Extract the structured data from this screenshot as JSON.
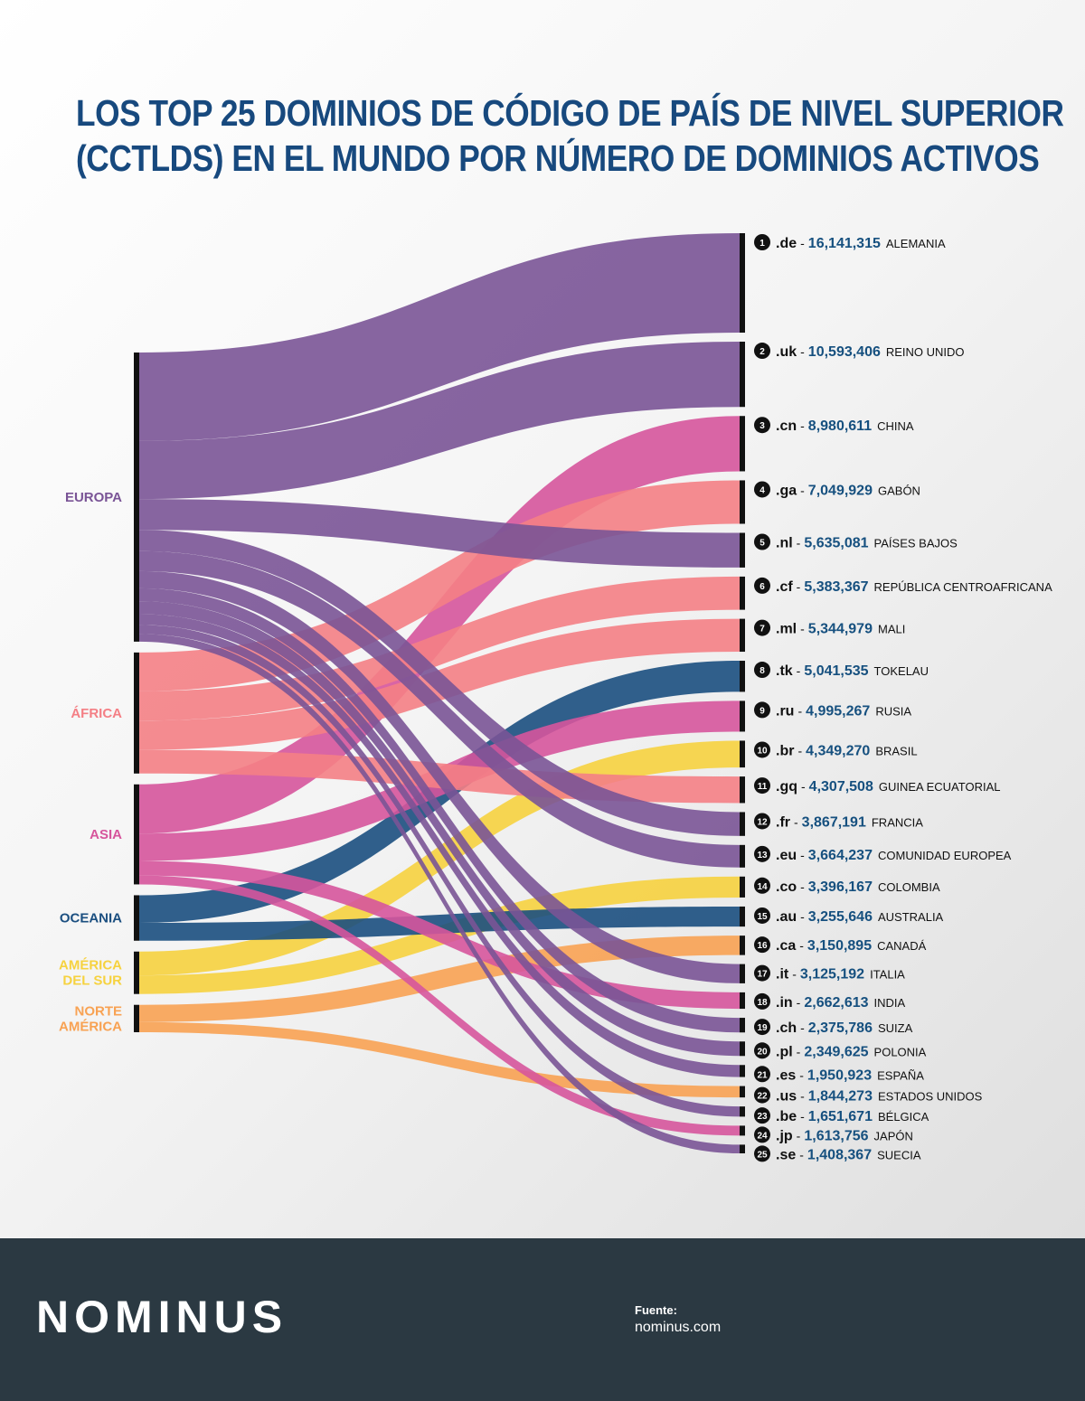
{
  "title": {
    "line1": "LOS TOP 25 DOMINIOS DE CÓDIGO DE PAÍS DE NIVEL SUPERIOR",
    "line2": "(CCTLDS) EN EL MUNDO POR NÚMERO DE DOMINIOS ACTIVOS"
  },
  "chart_data": {
    "type": "sankey",
    "regions": [
      {
        "id": "europa",
        "label": [
          "EUROPA"
        ],
        "color": "#7a5496"
      },
      {
        "id": "africa",
        "label": [
          "ÁFRICA"
        ],
        "color": "#f47f85"
      },
      {
        "id": "asia",
        "label": [
          "ASIA"
        ],
        "color": "#d6559c"
      },
      {
        "id": "oceania",
        "label": [
          "OCEANIA"
        ],
        "color": "#1b4f80"
      },
      {
        "id": "sudamerica",
        "label": [
          "AMÉRICA",
          "DEL SUR"
        ],
        "color": "#f6d23f"
      },
      {
        "id": "norteamerica",
        "label": [
          "NORTE",
          "AMÉRICA"
        ],
        "color": "#f8a253"
      }
    ],
    "domains": [
      {
        "rank": "1",
        "tld": ".de",
        "value": 16141315,
        "value_label": "16,141,315",
        "country": "ALEMANIA",
        "region": "europa"
      },
      {
        "rank": "2",
        "tld": ".uk",
        "value": 10593406,
        "value_label": "10,593,406",
        "country": "REINO UNIDO",
        "region": "europa"
      },
      {
        "rank": "3",
        "tld": ".cn",
        "value": 8980611,
        "value_label": "8,980,611",
        "country": "CHINA",
        "region": "asia"
      },
      {
        "rank": "4",
        "tld": ".ga",
        "value": 7049929,
        "value_label": "7,049,929",
        "country": "GABÓN",
        "region": "africa"
      },
      {
        "rank": "5",
        "tld": ".nl",
        "value": 5635081,
        "value_label": "5,635,081",
        "country": "PAÍSES BAJOS",
        "region": "europa"
      },
      {
        "rank": "6",
        "tld": ".cf",
        "value": 5383367,
        "value_label": "5,383,367",
        "country": "REPÚBLICA CENTROAFRICANA",
        "region": "africa"
      },
      {
        "rank": "7",
        "tld": ".ml",
        "value": 5344979,
        "value_label": "5,344,979",
        "country": "MALI",
        "region": "africa"
      },
      {
        "rank": "8",
        "tld": ".tk",
        "value": 5041535,
        "value_label": "5,041,535",
        "country": "TOKELAU",
        "region": "oceania"
      },
      {
        "rank": "9",
        "tld": ".ru",
        "value": 4995267,
        "value_label": "4,995,267",
        "country": "RUSIA",
        "region": "asia"
      },
      {
        "rank": "10",
        "tld": ".br",
        "value": 4349270,
        "value_label": "4,349,270",
        "country": "BRASIL",
        "region": "sudamerica"
      },
      {
        "rank": "11",
        "tld": ".gq",
        "value": 4307508,
        "value_label": "4,307,508",
        "country": "GUINEA ECUATORIAL",
        "region": "africa"
      },
      {
        "rank": "12",
        "tld": ".fr",
        "value": 3867191,
        "value_label": "3,867,191",
        "country": "FRANCIA",
        "region": "europa"
      },
      {
        "rank": "13",
        "tld": ".eu",
        "value": 3664237,
        "value_label": "3,664,237",
        "country": "COMUNIDAD EUROPEA",
        "region": "europa"
      },
      {
        "rank": "14",
        "tld": ".co",
        "value": 3396167,
        "value_label": "3,396,167",
        "country": "COLOMBIA",
        "region": "sudamerica"
      },
      {
        "rank": "15",
        "tld": ".au",
        "value": 3255646,
        "value_label": "3,255,646",
        "country": "AUSTRALIA",
        "region": "oceania"
      },
      {
        "rank": "16",
        "tld": ".ca",
        "value": 3150895,
        "value_label": "3,150,895",
        "country": "CANADÁ",
        "region": "norteamerica"
      },
      {
        "rank": "17",
        "tld": ".it",
        "value": 3125192,
        "value_label": "3,125,192",
        "country": "ITALIA",
        "region": "europa"
      },
      {
        "rank": "18",
        "tld": ".in",
        "value": 2662613,
        "value_label": "2,662,613",
        "country": "INDIA",
        "region": "asia"
      },
      {
        "rank": "19",
        "tld": ".ch",
        "value": 2375786,
        "value_label": "2,375,786",
        "country": "SUIZA",
        "region": "europa"
      },
      {
        "rank": "20",
        "tld": ".pl",
        "value": 2349625,
        "value_label": "2,349,625",
        "country": "POLONIA",
        "region": "europa"
      },
      {
        "rank": "21",
        "tld": ".es",
        "value": 1950923,
        "value_label": "1,950,923",
        "country": "ESPAÑA",
        "region": "europa"
      },
      {
        "rank": "22",
        "tld": ".us",
        "value": 1844273,
        "value_label": "1,844,273",
        "country": "ESTADOS UNIDOS",
        "region": "norteamerica"
      },
      {
        "rank": "23",
        "tld": ".be",
        "value": 1651671,
        "value_label": "1,651,671",
        "country": "BÉLGICA",
        "region": "europa"
      },
      {
        "rank": "24",
        "tld": ".jp",
        "value": 1613756,
        "value_label": "1,613,756",
        "country": "JAPÓN",
        "region": "asia"
      },
      {
        "rank": "25",
        "tld": ".se",
        "value": 1408367,
        "value_label": "1,408,367",
        "country": "SUECIA",
        "region": "europa"
      }
    ]
  },
  "footer": {
    "logo": "NOMINUS",
    "source_label": "Fuente:",
    "source_value": "nominus.com"
  }
}
